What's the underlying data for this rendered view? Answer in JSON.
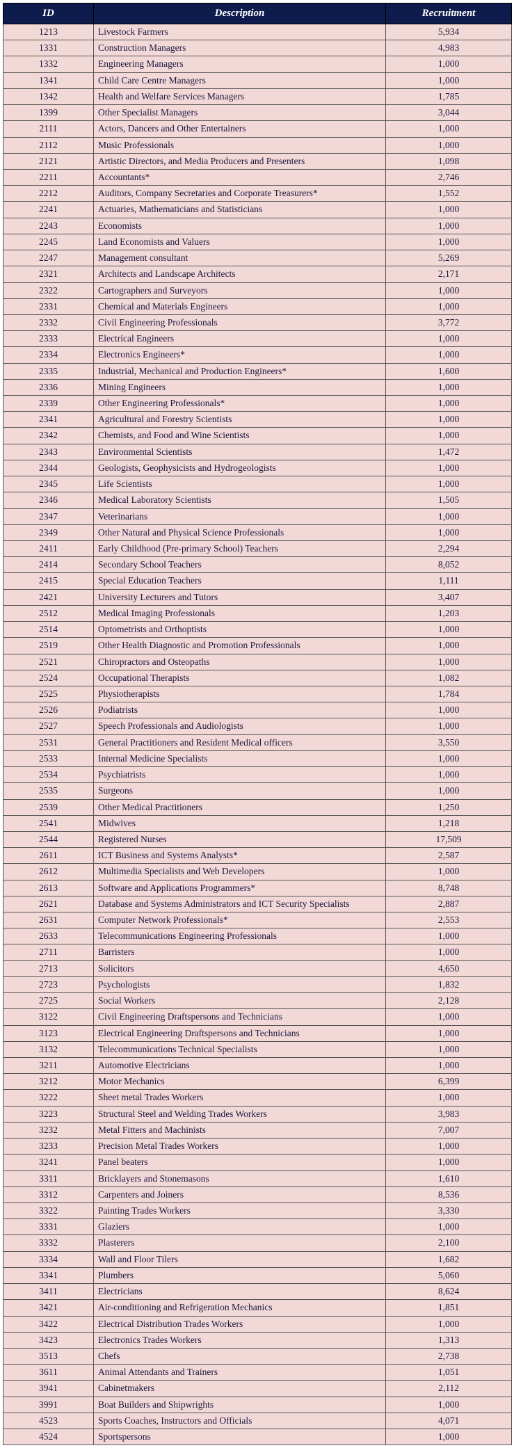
{
  "table": {
    "header_bg": "#0e1b4d",
    "header_fg": "#ffffff",
    "row_bg": "#f3d8d8",
    "row_fg": "#1a1a3d",
    "columns": [
      "ID",
      "Description",
      "Recruitment"
    ],
    "rows": [
      [
        "1213",
        "Livestock Farmers",
        "5,934"
      ],
      [
        "1331",
        "Construction Managers",
        "4,983"
      ],
      [
        "1332",
        "Engineering Managers",
        "1,000"
      ],
      [
        "1341",
        "Child Care Centre Managers",
        "1,000"
      ],
      [
        "1342",
        "Health and Welfare Services Managers",
        "1,785"
      ],
      [
        "1399",
        "Other Specialist Managers",
        "3,044"
      ],
      [
        "2111",
        "Actors, Dancers and Other Entertainers",
        "1,000"
      ],
      [
        "2112",
        "Music Professionals",
        "1,000"
      ],
      [
        "2121",
        "Artistic Directors, and Media Producers and Presenters",
        "1,098"
      ],
      [
        "2211",
        "Accountants*",
        "2,746"
      ],
      [
        "2212",
        "Auditors, Company Secretaries and Corporate Treasurers*",
        "1,552"
      ],
      [
        "2241",
        "Actuaries, Mathematicians and Statisticians",
        "1,000"
      ],
      [
        "2243",
        "Economists",
        "1,000"
      ],
      [
        "2245",
        "Land Economists and Valuers",
        "1,000"
      ],
      [
        "2247",
        "Management consultant",
        "5,269"
      ],
      [
        "2321",
        "Architects and Landscape Architects",
        "2,171"
      ],
      [
        "2322",
        "Cartographers and Surveyors",
        "1,000"
      ],
      [
        "2331",
        "Chemical and Materials Engineers",
        "1,000"
      ],
      [
        "2332",
        "Civil Engineering Professionals",
        "3,772"
      ],
      [
        "2333",
        "Electrical Engineers",
        "1,000"
      ],
      [
        "2334",
        "Electronics Engineers*",
        "1,000"
      ],
      [
        "2335",
        "Industrial, Mechanical and Production Engineers*",
        "1,600"
      ],
      [
        "2336",
        "Mining Engineers",
        "1,000"
      ],
      [
        "2339",
        "Other Engineering Professionals*",
        "1,000"
      ],
      [
        "2341",
        "Agricultural and Forestry Scientists",
        "1,000"
      ],
      [
        "2342",
        "Chemists, and Food and Wine Scientists",
        "1,000"
      ],
      [
        "2343",
        "Environmental Scientists",
        "1,472"
      ],
      [
        "2344",
        "Geologists, Geophysicists and Hydrogeologists",
        "1,000"
      ],
      [
        "2345",
        "Life Scientists",
        "1,000"
      ],
      [
        "2346",
        "Medical Laboratory Scientists",
        "1,505"
      ],
      [
        "2347",
        "Veterinarians",
        "1,000"
      ],
      [
        "2349",
        "Other Natural and Physical Science Professionals",
        "1,000"
      ],
      [
        "2411",
        "Early Childhood (Pre-primary School) Teachers",
        "2,294"
      ],
      [
        "2414",
        "Secondary School Teachers",
        "8,052"
      ],
      [
        "2415",
        "Special Education Teachers",
        "1,111"
      ],
      [
        "2421",
        "University Lecturers and Tutors",
        "3,407"
      ],
      [
        "2512",
        "Medical Imaging Professionals",
        "1,203"
      ],
      [
        "2514",
        "Optometrists and Orthoptists",
        "1,000"
      ],
      [
        "2519",
        "Other Health Diagnostic and Promotion Professionals",
        "1,000"
      ],
      [
        "2521",
        "Chiropractors and Osteopaths",
        "1,000"
      ],
      [
        "2524",
        "Occupational Therapists",
        "1,082"
      ],
      [
        "2525",
        "Physiotherapists",
        "1,784"
      ],
      [
        "2526",
        "Podiatrists",
        "1,000"
      ],
      [
        "2527",
        "Speech Professionals and Audiologists",
        "1,000"
      ],
      [
        "2531",
        "General Practitioners and Resident Medical officers",
        "3,550"
      ],
      [
        "2533",
        "Internal Medicine Specialists",
        "1,000"
      ],
      [
        "2534",
        "Psychiatrists",
        "1,000"
      ],
      [
        "2535",
        "Surgeons",
        "1,000"
      ],
      [
        "2539",
        "Other Medical Practitioners",
        "1,250"
      ],
      [
        "2541",
        "Midwives",
        "1,218"
      ],
      [
        "2544",
        "Registered Nurses",
        "17,509"
      ],
      [
        "2611",
        "ICT Business and Systems Analysts*",
        "2,587"
      ],
      [
        "2612",
        "Multimedia Specialists and Web Developers",
        "1,000"
      ],
      [
        "2613",
        "Software and Applications Programmers*",
        "8,748"
      ],
      [
        "2621",
        "Database and Systems Administrators and ICT Security Specialists",
        "2,887"
      ],
      [
        "2631",
        "Computer Network Professionals*",
        "2,553"
      ],
      [
        "2633",
        "Telecommunications Engineering Professionals",
        "1,000"
      ],
      [
        "2711",
        "Barristers",
        "1,000"
      ],
      [
        "2713",
        "Solicitors",
        "4,650"
      ],
      [
        "2723",
        "Psychologists",
        "1,832"
      ],
      [
        "2725",
        "Social Workers",
        "2,128"
      ],
      [
        "3122",
        "Civil Engineering Draftspersons and Technicians",
        "1,000"
      ],
      [
        "3123",
        "Electrical Engineering Draftspersons and Technicians",
        "1,000"
      ],
      [
        "3132",
        "Telecommunications Technical Specialists",
        "1,000"
      ],
      [
        "3211",
        "Automotive Electricians",
        "1,000"
      ],
      [
        "3212",
        "Motor Mechanics",
        "6,399"
      ],
      [
        "3222",
        "Sheet metal Trades Workers",
        "1,000"
      ],
      [
        "3223",
        "Structural Steel and Welding Trades Workers",
        "3,983"
      ],
      [
        "3232",
        "Metal Fitters and Machinists",
        "7,007"
      ],
      [
        "3233",
        "Precision Metal Trades Workers",
        "1,000"
      ],
      [
        "3241",
        "Panel beaters",
        "1,000"
      ],
      [
        "3311",
        "Bricklayers and Stonemasons",
        "1,610"
      ],
      [
        "3312",
        "Carpenters and Joiners",
        "8,536"
      ],
      [
        "3322",
        "Painting Trades Workers",
        "3,330"
      ],
      [
        "3331",
        "Glaziers",
        "1,000"
      ],
      [
        "3332",
        "Plasterers",
        "2,100"
      ],
      [
        "3334",
        "Wall and Floor Tilers",
        "1,682"
      ],
      [
        "3341",
        "Plumbers",
        "5,060"
      ],
      [
        "3411",
        "Electricians",
        "8,624"
      ],
      [
        "3421",
        "Air-conditioning and Refrigeration Mechanics",
        "1,851"
      ],
      [
        "3422",
        "Electrical Distribution Trades Workers",
        "1,000"
      ],
      [
        "3423",
        "Electronics Trades Workers",
        "1,313"
      ],
      [
        "3513",
        "Chefs",
        "2,738"
      ],
      [
        "3611",
        "Animal Attendants and Trainers",
        "1,051"
      ],
      [
        "3941",
        "Cabinetmakers",
        "2,112"
      ],
      [
        "3991",
        "Boat Builders and Shipwrights",
        "1,000"
      ],
      [
        "4523",
        "Sports Coaches, Instructors and Officials",
        "4,071"
      ],
      [
        "4524",
        "Sportspersons",
        "1,000"
      ]
    ]
  }
}
